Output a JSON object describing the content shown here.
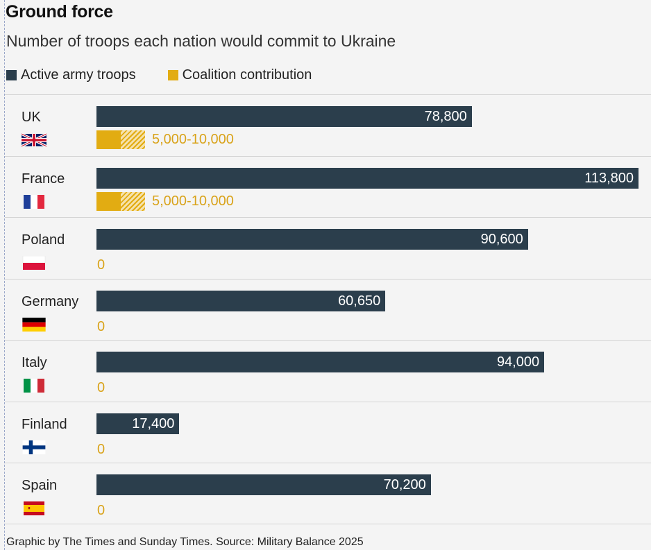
{
  "header": {
    "title": "Ground force",
    "subtitle": "Number of troops each nation would commit to Ukraine"
  },
  "legend": {
    "active": "Active army troops",
    "coalition": "Coalition contribution"
  },
  "colors": {
    "active": "#2b3e4c",
    "coalition": "#e2ac12"
  },
  "chart_data": {
    "type": "bar",
    "orientation": "horizontal",
    "categories": [
      "UK",
      "France",
      "Poland",
      "Germany",
      "Italy",
      "Finland",
      "Spain"
    ],
    "series": [
      {
        "name": "Active army troops",
        "values": [
          78800,
          113800,
          90600,
          60650,
          94000,
          17400,
          70200
        ],
        "labels": [
          "78,800",
          "113,800",
          "90,600",
          "60,650",
          "94,000",
          "17,400",
          "70,200"
        ]
      },
      {
        "name": "Coalition contribution",
        "ranges": [
          [
            5000,
            10000
          ],
          [
            5000,
            10000
          ],
          [
            0,
            0
          ],
          [
            0,
            0
          ],
          [
            0,
            0
          ],
          [
            0,
            0
          ],
          [
            0,
            0
          ]
        ],
        "labels": [
          "5,000-10,000",
          "5,000-10,000",
          "0",
          "0",
          "0",
          "0",
          "0"
        ]
      }
    ],
    "xlim": [
      0,
      113800
    ],
    "flags": [
      "uk-flag-icon",
      "france-flag-icon",
      "poland-flag-icon",
      "germany-flag-icon",
      "italy-flag-icon",
      "finland-flag-icon",
      "spain-flag-icon"
    ]
  },
  "footer": {
    "source": "Graphic by The Times and Sunday Times. Source: Military Balance 2025"
  }
}
